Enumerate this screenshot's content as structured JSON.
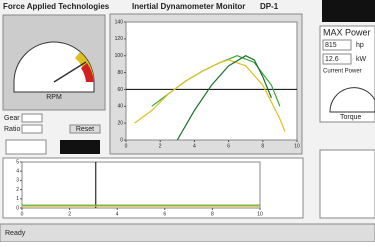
{
  "header": {
    "company": "Force Applied Technologies",
    "app": "Inertial Dynamometer Monitor",
    "model": "DP-1"
  },
  "rpm_gauge": {
    "label": "RPM"
  },
  "left_fields": {
    "gear": "Gear",
    "ratio": "Ratio",
    "reset": "Reset"
  },
  "max_power": {
    "title": "MAX Power",
    "hp_value": "815",
    "hp_unit": "hp",
    "kw_value": "12.6",
    "kw_unit": "kW",
    "current": "Current Power",
    "torque": "Torque"
  },
  "main_chart": {
    "type": "line",
    "xlim": [
      0,
      10
    ],
    "ylim": [
      0,
      140
    ],
    "xticks": [
      0,
      2,
      4,
      6,
      8,
      10
    ],
    "yticks": [
      0,
      20,
      40,
      60,
      80,
      100,
      120,
      140
    ],
    "hline": 60,
    "series": [
      {
        "color": "#3aa83a",
        "x": [
          1.5,
          2.5,
          3.5,
          4.5,
          5.5,
          6.5,
          7.5,
          8.5,
          9
        ],
        "values": [
          40,
          55,
          70,
          82,
          92,
          100,
          92,
          65,
          40
        ]
      },
      {
        "color": "#e0c020",
        "x": [
          0.5,
          1.5,
          2.5,
          3.5,
          4.5,
          5.5,
          6,
          7,
          8,
          9,
          9.3
        ],
        "values": [
          20,
          35,
          55,
          70,
          82,
          92,
          95,
          88,
          65,
          25,
          10
        ]
      },
      {
        "color": "#1e6e2e",
        "x": [
          3,
          4,
          5,
          6,
          7,
          7.5,
          8,
          8.5
        ],
        "values": [
          0,
          35,
          65,
          88,
          100,
          95,
          75,
          50
        ]
      }
    ]
  },
  "lower_chart": {
    "type": "line",
    "xlim": [
      0,
      10
    ],
    "ylim": [
      0,
      5
    ],
    "xticks": [
      0,
      2,
      4,
      6,
      8,
      10
    ],
    "yticks": [
      0,
      1,
      2,
      3,
      4,
      5
    ],
    "vline": 3.1,
    "series": [
      {
        "color": "#3aa83a",
        "x": [
          0,
          2,
          4,
          6,
          8,
          10
        ],
        "values": [
          0.3,
          0.3,
          0.3,
          0.3,
          0.3,
          0.3
        ]
      },
      {
        "color": "#e0c020",
        "x": [
          0,
          2,
          4,
          6,
          8,
          10
        ],
        "values": [
          0.2,
          0.2,
          0.2,
          0.2,
          0.2,
          0.2
        ]
      }
    ]
  },
  "status": {
    "text": "Ready"
  }
}
